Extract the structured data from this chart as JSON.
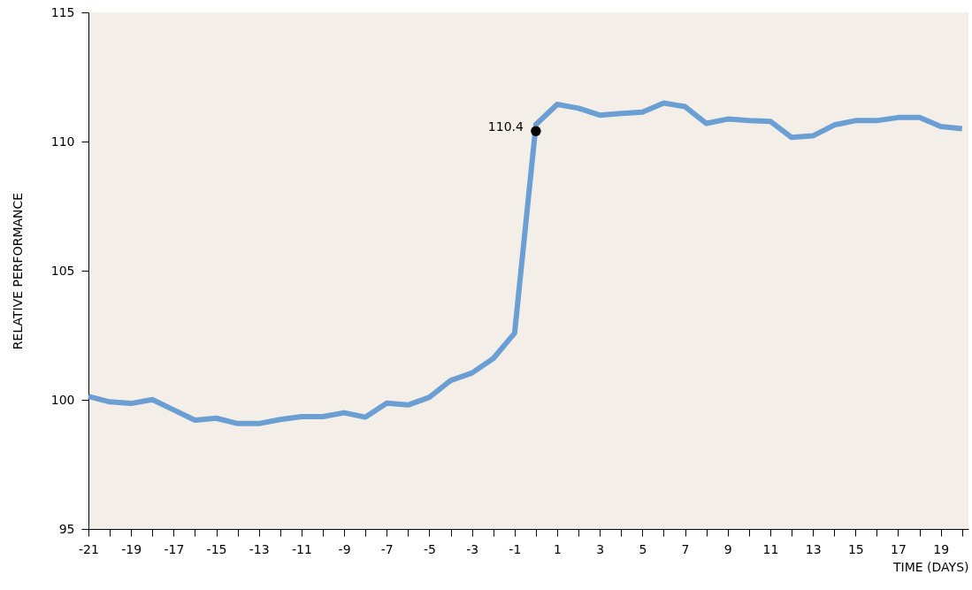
{
  "chart_data": {
    "type": "line",
    "xlabel": "TIME (DAYS)",
    "ylabel": "RELATIVE PERFORMANCE",
    "x": [
      -21,
      -20,
      -19,
      -18,
      -17,
      -16,
      -15,
      -14,
      -13,
      -12,
      -11,
      -10,
      -9,
      -8,
      -7,
      -6,
      -5,
      -4,
      -3,
      -2,
      -1,
      0,
      1,
      2,
      3,
      4,
      5,
      6,
      7,
      8,
      9,
      10,
      11,
      12,
      13,
      14,
      15,
      16,
      17,
      18,
      19,
      20
    ],
    "series": [
      {
        "type": "scatter",
        "marker": "circle",
        "x": [
          0
        ],
        "color": "#000000",
        "values": [
          110.4
        ],
        "value_labels": [
          "110.4"
        ]
      },
      {
        "color": "#6b9fd4",
        "values": [
          100.13,
          99.92,
          99.86,
          100.01,
          99.61,
          99.21,
          99.29,
          99.08,
          99.08,
          99.24,
          99.35,
          99.35,
          99.5,
          99.33,
          99.87,
          99.8,
          100.1,
          100.75,
          101.04,
          101.6,
          102.58,
          110.66,
          111.44,
          111.29,
          111.02,
          111.09,
          111.14,
          111.49,
          111.35,
          110.7,
          110.87,
          110.81,
          110.78,
          110.16,
          110.22,
          110.64,
          110.81,
          110.81,
          110.93,
          110.93,
          110.58,
          110.5
        ]
      }
    ],
    "xlim": [
      -21,
      20.3
    ],
    "ylim": [
      95,
      115
    ],
    "xticks": [
      -21,
      {
        "value": -20,
        "label": null
      },
      -19,
      {
        "value": -18,
        "label": null
      },
      -17,
      {
        "value": -16,
        "label": null
      },
      -15,
      {
        "value": -14,
        "label": null
      },
      -13,
      {
        "value": -12,
        "label": null
      },
      -11,
      {
        "value": -10,
        "label": null
      },
      -9,
      {
        "value": -8,
        "label": null
      },
      -7,
      {
        "value": -6,
        "label": null
      },
      -5,
      {
        "value": -4,
        "label": null
      },
      -3,
      {
        "value": -2,
        "label": null
      },
      -1,
      {
        "value": 0,
        "label": null
      },
      1,
      {
        "value": 2,
        "label": null
      },
      3,
      {
        "value": 4,
        "label": null
      },
      5,
      {
        "value": 6,
        "label": null
      },
      7,
      {
        "value": 8,
        "label": null
      },
      9,
      {
        "value": 10,
        "label": null
      },
      11,
      {
        "value": 12,
        "label": null
      },
      13,
      {
        "value": 14,
        "label": null
      },
      15,
      {
        "value": 16,
        "label": null
      },
      17,
      {
        "value": 18,
        "label": null
      },
      19,
      {
        "value": 20,
        "label": null
      }
    ],
    "yticks": [
      95,
      100,
      105,
      110,
      115
    ],
    "grid": false,
    "marker": "none",
    "line_style": "solid"
  }
}
